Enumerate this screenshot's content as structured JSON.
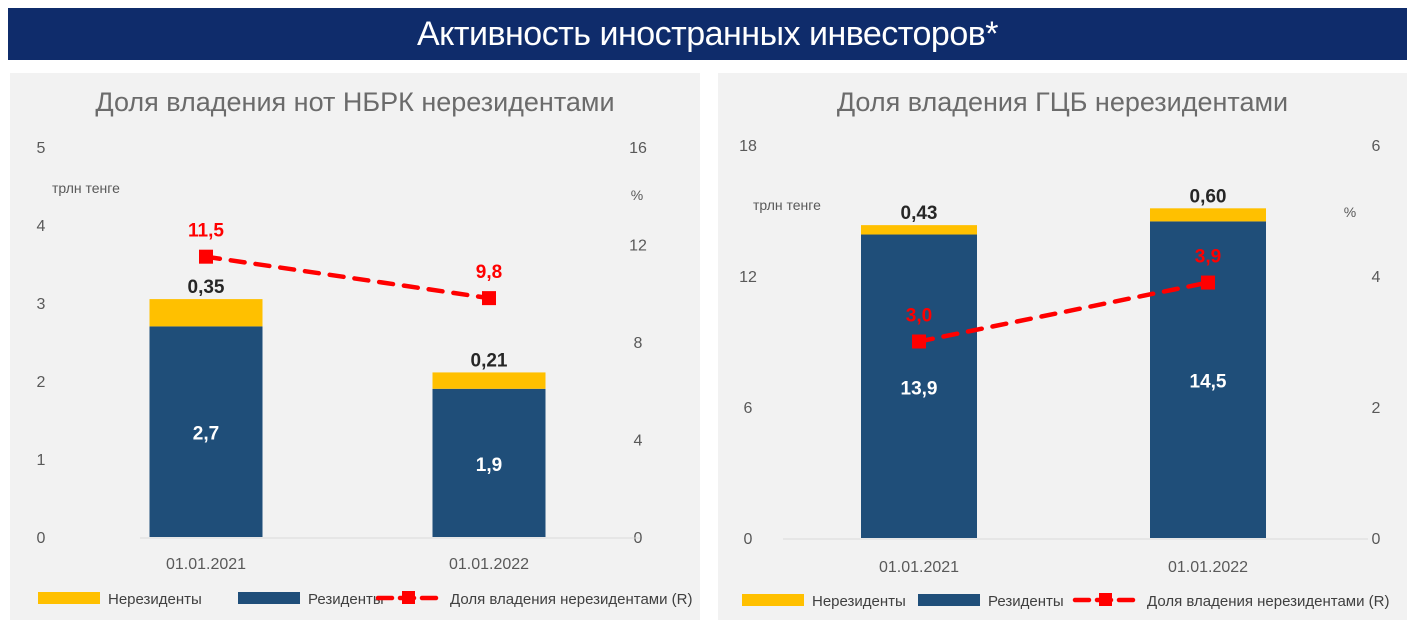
{
  "header": {
    "title": "Активность иностранных инвесторов*"
  },
  "colors": {
    "banner": "#0f2c6b",
    "nonresidents": "#ffc000",
    "residents": "#1f4e79",
    "share_line": "#ff0000",
    "panel_bg": "#f2f2f2"
  },
  "legend": {
    "nonresidents": "Нерезиденты",
    "residents": "Резиденты",
    "share": "Доля владения нерезидентами (R)"
  },
  "chart_data": [
    {
      "type": "bar",
      "stacked": true,
      "title": "Доля владения нот НБРК нерезидентами",
      "ylabel": "трлн тенге",
      "y2label": "%",
      "ylim": [
        0,
        5
      ],
      "yticks": [
        "0",
        "1",
        "2",
        "3",
        "4",
        "5"
      ],
      "y2lim": [
        0,
        16
      ],
      "y2ticks": [
        "0",
        "4",
        "8",
        "12",
        "16"
      ],
      "categories": [
        "01.01.2021",
        "01.01.2022"
      ],
      "series": [
        {
          "name": "Резиденты",
          "values": [
            2.7,
            1.9
          ],
          "labels": [
            "2,7",
            "1,9"
          ]
        },
        {
          "name": "Нерезиденты",
          "values": [
            0.35,
            0.21
          ],
          "labels": [
            "0,35",
            "0,21"
          ]
        },
        {
          "name": "Доля владения нерезидентами (R)",
          "type": "line",
          "axis": "right",
          "values": [
            11.5,
            9.8
          ],
          "labels": [
            "11,5",
            "9,8"
          ]
        }
      ],
      "legend_position": "bottom",
      "grid": false
    },
    {
      "type": "bar",
      "stacked": true,
      "title": "Доля владения ГЦБ нерезидентами",
      "ylabel": "трлн тенге",
      "y2label": "%",
      "ylim": [
        0,
        18
      ],
      "yticks": [
        "0",
        "6",
        "12",
        "18"
      ],
      "y2lim": [
        0,
        6
      ],
      "y2ticks": [
        "0",
        "2",
        "4",
        "6"
      ],
      "categories": [
        "01.01.2021",
        "01.01.2022"
      ],
      "series": [
        {
          "name": "Резиденты",
          "values": [
            13.9,
            14.5
          ],
          "labels": [
            "13,9",
            "14,5"
          ]
        },
        {
          "name": "Нерезиденты",
          "values": [
            0.43,
            0.6
          ],
          "labels": [
            "0,43",
            "0,60"
          ]
        },
        {
          "name": "Доля владения нерезидентами (R)",
          "type": "line",
          "axis": "right",
          "values": [
            3.0,
            3.9
          ],
          "labels": [
            "3,0",
            "3,9"
          ]
        }
      ],
      "legend_position": "bottom",
      "grid": false
    }
  ]
}
